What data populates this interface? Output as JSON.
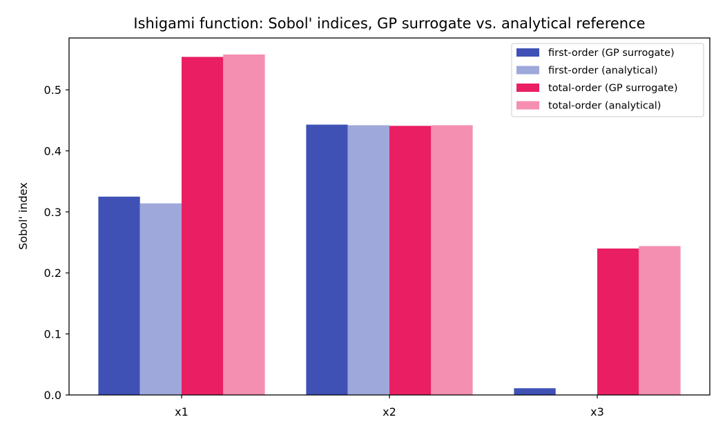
{
  "chart_data": {
    "type": "bar",
    "title": "Ishigami function: Sobol' indices, GP surrogate vs. analytical reference",
    "xlabel": "",
    "ylabel": "Sobol' index",
    "categories": [
      "x1",
      "x2",
      "x3"
    ],
    "series": [
      {
        "name": "first-order (GP surrogate)",
        "values": [
          0.325,
          0.443,
          0.011
        ],
        "color": "#3f51b5"
      },
      {
        "name": "first-order (analytical)",
        "values": [
          0.314,
          0.442,
          0.0
        ],
        "color": "#9fa8da"
      },
      {
        "name": "total-order (GP surrogate)",
        "values": [
          0.554,
          0.441,
          0.24
        ],
        "color": "#e91e63"
      },
      {
        "name": "total-order (analytical)",
        "values": [
          0.558,
          0.442,
          0.244
        ],
        "color": "#f48fb1"
      }
    ],
    "ylim": [
      0,
      0.585
    ],
    "yticks": [
      0.0,
      0.1,
      0.2,
      0.3,
      0.4,
      0.5
    ],
    "ytick_labels": [
      "0.0",
      "0.1",
      "0.2",
      "0.3",
      "0.4",
      "0.5"
    ],
    "grid": false,
    "legend_position": "top-right"
  }
}
